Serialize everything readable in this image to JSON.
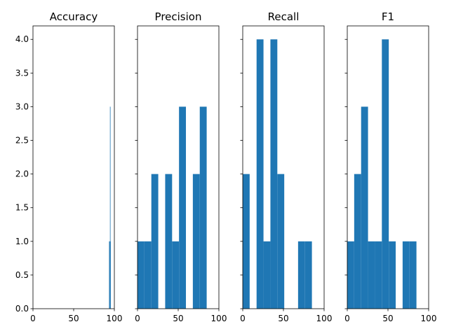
{
  "chart_data": [
    {
      "type": "bar",
      "title": "Accuracy",
      "xlim": [
        0,
        100
      ],
      "ylim": [
        0,
        4.2
      ],
      "xticks": [
        "0",
        "50",
        "100"
      ],
      "yticks": [
        "0.0",
        "0.5",
        "1.0",
        "1.5",
        "2.0",
        "2.5",
        "3.0",
        "3.5",
        "4.0"
      ],
      "show_yticklabels": true,
      "bars": [
        {
          "x0": 93.5,
          "x1": 94.3,
          "count": 1
        },
        {
          "x0": 94.3,
          "x1": 94.6,
          "count": 1
        },
        {
          "x0": 94.6,
          "x1": 94.9,
          "count": 3
        },
        {
          "x0": 94.9,
          "x1": 95.3,
          "count": 1
        }
      ]
    },
    {
      "type": "bar",
      "title": "Precision",
      "xlim": [
        0,
        100
      ],
      "ylim": [
        0,
        4.2
      ],
      "xticks": [
        "0",
        "50",
        "100"
      ],
      "show_yticklabels": false,
      "bars": [
        {
          "x0": 0,
          "x1": 8.5,
          "count": 1
        },
        {
          "x0": 8.5,
          "x1": 17,
          "count": 1
        },
        {
          "x0": 17,
          "x1": 25.5,
          "count": 2
        },
        {
          "x0": 25.5,
          "x1": 34,
          "count": 0
        },
        {
          "x0": 34,
          "x1": 42.5,
          "count": 2
        },
        {
          "x0": 42.5,
          "x1": 51,
          "count": 1
        },
        {
          "x0": 51,
          "x1": 59.5,
          "count": 3
        },
        {
          "x0": 59.5,
          "x1": 68,
          "count": 0
        },
        {
          "x0": 68,
          "x1": 76.5,
          "count": 2
        },
        {
          "x0": 76.5,
          "x1": 85,
          "count": 3
        }
      ]
    },
    {
      "type": "bar",
      "title": "Recall",
      "xlim": [
        0,
        100
      ],
      "ylim": [
        0,
        4.2
      ],
      "xticks": [
        "0",
        "50",
        "100"
      ],
      "show_yticklabels": false,
      "bars": [
        {
          "x0": 0,
          "x1": 8.5,
          "count": 2
        },
        {
          "x0": 8.5,
          "x1": 17,
          "count": 0
        },
        {
          "x0": 17,
          "x1": 25.5,
          "count": 4
        },
        {
          "x0": 25.5,
          "x1": 34,
          "count": 1
        },
        {
          "x0": 34,
          "x1": 42.5,
          "count": 4
        },
        {
          "x0": 42.5,
          "x1": 51,
          "count": 2
        },
        {
          "x0": 51,
          "x1": 59.5,
          "count": 0
        },
        {
          "x0": 59.5,
          "x1": 68,
          "count": 0
        },
        {
          "x0": 68,
          "x1": 76.5,
          "count": 1
        },
        {
          "x0": 76.5,
          "x1": 85,
          "count": 1
        }
      ]
    },
    {
      "type": "bar",
      "title": "F1",
      "xlim": [
        0,
        100
      ],
      "ylim": [
        0,
        4.2
      ],
      "xticks": [
        "0",
        "50",
        "100"
      ],
      "show_yticklabels": false,
      "bars": [
        {
          "x0": 0,
          "x1": 8.5,
          "count": 1
        },
        {
          "x0": 8.5,
          "x1": 17,
          "count": 2
        },
        {
          "x0": 17,
          "x1": 25.5,
          "count": 3
        },
        {
          "x0": 25.5,
          "x1": 34,
          "count": 1
        },
        {
          "x0": 34,
          "x1": 42.5,
          "count": 1
        },
        {
          "x0": 42.5,
          "x1": 51,
          "count": 4
        },
        {
          "x0": 51,
          "x1": 59.5,
          "count": 1
        },
        {
          "x0": 59.5,
          "x1": 68,
          "count": 0
        },
        {
          "x0": 68,
          "x1": 76.5,
          "count": 1
        },
        {
          "x0": 76.5,
          "x1": 85,
          "count": 1
        }
      ]
    }
  ],
  "colors": {
    "bar": "#1f77b4",
    "axis": "#000000",
    "background": "#ffffff"
  }
}
